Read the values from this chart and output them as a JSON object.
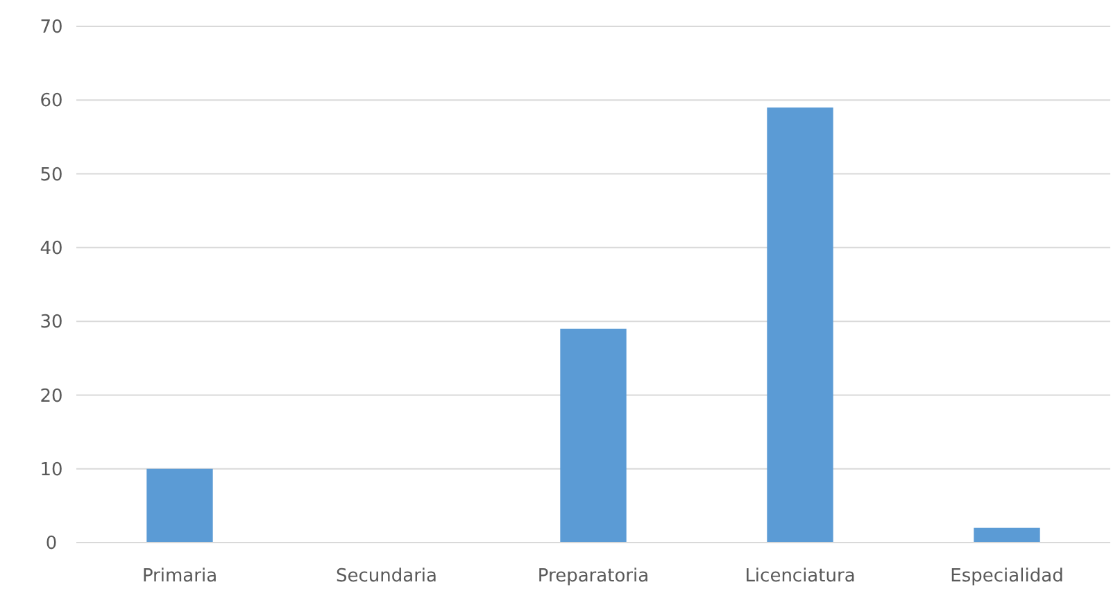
{
  "chart_data": {
    "type": "bar",
    "categories": [
      "Primaria",
      "Secundaria",
      "Preparatoria",
      "Licenciatura",
      "Especialidad"
    ],
    "values": [
      10,
      0,
      29,
      59,
      2
    ],
    "color": "#5b9bd5",
    "ylim": [
      0,
      70
    ],
    "yticks": [
      0,
      10,
      20,
      30,
      40,
      50,
      60,
      70
    ],
    "grid": "y"
  }
}
